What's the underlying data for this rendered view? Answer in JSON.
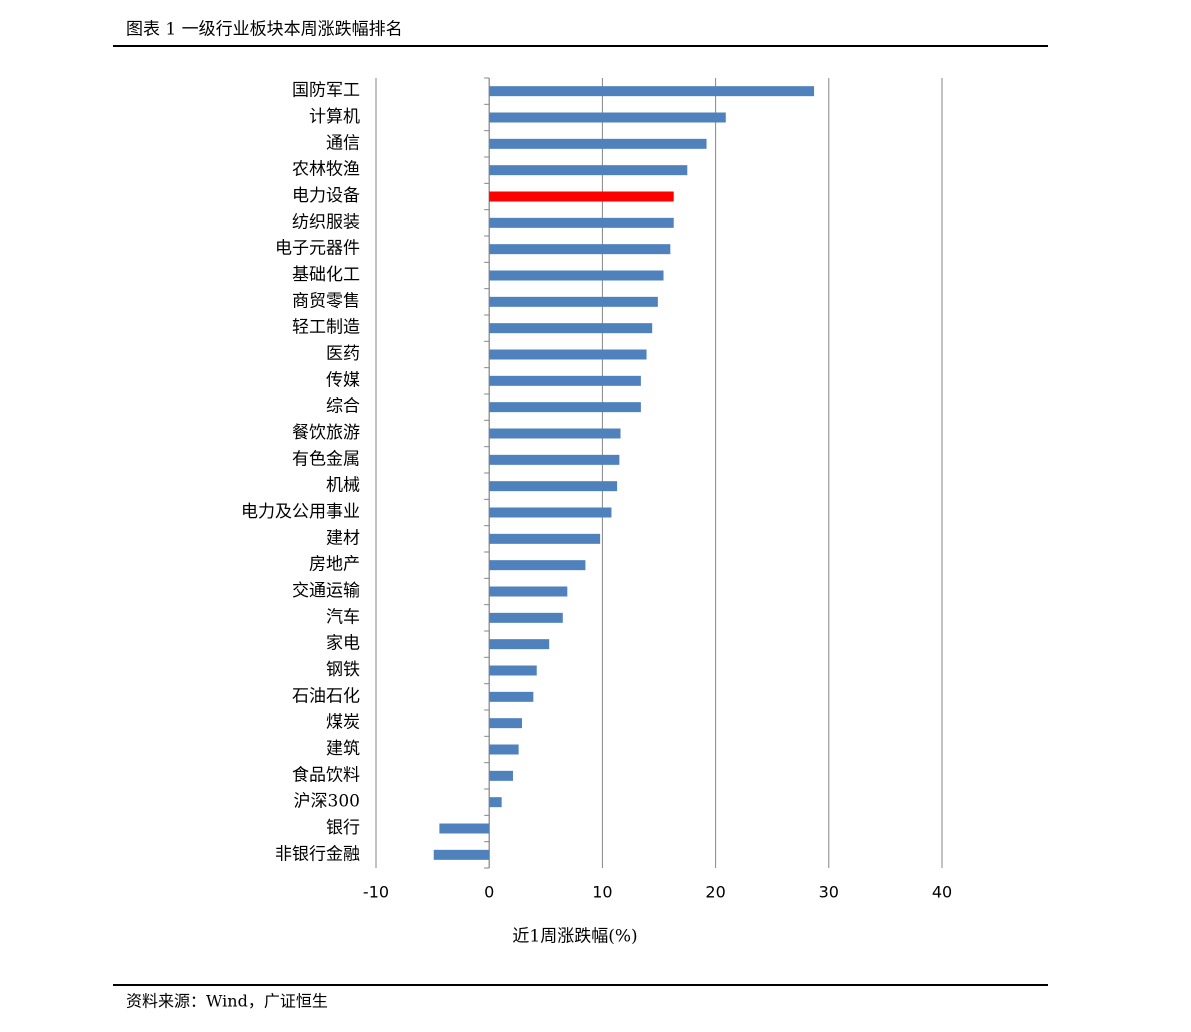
{
  "header": {
    "title": "图表 1 一级行业板块本周涨跌幅排名"
  },
  "chart_data": {
    "type": "barh",
    "categories": [
      "国防军工",
      "计算机",
      "通信",
      "农林牧渔",
      "电力设备",
      "纺织服装",
      "电子元器件",
      "基础化工",
      "商贸零售",
      "轻工制造",
      "医药",
      "传媒",
      "综合",
      "餐饮旅游",
      "有色金属",
      "机械",
      "电力及公用事业",
      "建材",
      "房地产",
      "交通运输",
      "汽车",
      "家电",
      "钢铁",
      "石油石化",
      "煤炭",
      "建筑",
      "食品饮料",
      "沪深300",
      "银行",
      "非银行金融"
    ],
    "values": [
      28.7,
      20.9,
      19.2,
      17.5,
      16.3,
      16.3,
      16.0,
      15.4,
      14.9,
      14.4,
      13.9,
      13.4,
      13.4,
      11.6,
      11.5,
      11.3,
      10.8,
      9.8,
      8.5,
      6.9,
      6.5,
      5.3,
      4.2,
      3.9,
      2.9,
      2.6,
      2.1,
      1.1,
      -4.4,
      -4.9
    ],
    "colors": [
      "#4f81bd",
      "#4f81bd",
      "#4f81bd",
      "#4f81bd",
      "#ff0000",
      "#4f81bd",
      "#4f81bd",
      "#4f81bd",
      "#4f81bd",
      "#4f81bd",
      "#4f81bd",
      "#4f81bd",
      "#4f81bd",
      "#4f81bd",
      "#4f81bd",
      "#4f81bd",
      "#4f81bd",
      "#4f81bd",
      "#4f81bd",
      "#4f81bd",
      "#4f81bd",
      "#4f81bd",
      "#4f81bd",
      "#4f81bd",
      "#4f81bd",
      "#4f81bd",
      "#4f81bd",
      "#4f81bd",
      "#4f81bd",
      "#4f81bd"
    ],
    "xlabel": "近1周涨跌幅(%)",
    "xlim": [
      -10,
      40
    ],
    "xticks": [
      -10,
      0,
      10,
      20,
      30,
      40
    ],
    "grid": true
  },
  "source": "资料来源：Wind，广证恒生"
}
